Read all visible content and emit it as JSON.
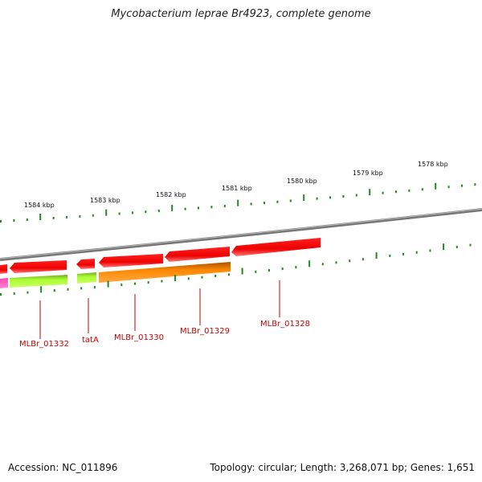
{
  "title": "Mycobacterium leprae Br4923, complete genome",
  "footer": {
    "accession": "Accession: NC_011896",
    "summary": "Topology: circular; Length: 3,268,071 bp; Genes: 1,651"
  },
  "scale_labels": [
    "1584 kbp",
    "1583 kbp",
    "1582 kbp",
    "1581 kbp",
    "1580 kbp",
    "1579 kbp",
    "1578 kbp"
  ],
  "gene_labels": [
    "MLBr_01332",
    "tatA",
    "MLBr_01330",
    "MLBr_01329",
    "MLBr_01328"
  ],
  "colors": {
    "cds": "#ff0000",
    "cds_light": "#ff6666",
    "backbone": "#888888",
    "tick": "#228822",
    "label": "#cc0000",
    "lime": "#aaff33",
    "orange": "#ff8800",
    "magenta": "#ff22aa"
  }
}
